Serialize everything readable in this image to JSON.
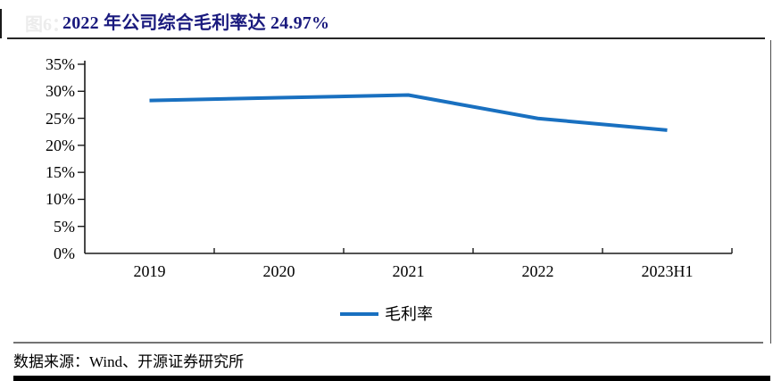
{
  "figure": {
    "faint_label": "图6：",
    "title": "2022 年公司综合毛利率达 24.97%",
    "source": "数据来源：Wind、开源证券研究所",
    "colors": {
      "title_navy": "#1a1a7e",
      "line_blue": "#1970c0",
      "axis_black": "#1a1a1a",
      "rule_gray": "#737373",
      "bottom_bar_black": "#000000"
    }
  },
  "chart_data": {
    "type": "line",
    "categories": [
      "2019",
      "2020",
      "2021",
      "2022",
      "2023H1"
    ],
    "series": [
      {
        "name": "毛利率",
        "values": [
          28.3,
          28.8,
          29.3,
          24.97,
          22.8
        ]
      }
    ],
    "title": "2022 年公司综合毛利率达 24.97%",
    "xlabel": "",
    "ylabel": "",
    "ylim": [
      0,
      35
    ],
    "ytick_step": 5,
    "ytick_labels": [
      "0%",
      "5%",
      "10%",
      "15%",
      "20%",
      "25%",
      "30%",
      "35%"
    ],
    "grid": false,
    "legend_position": "bottom-center",
    "legend": [
      "毛利率"
    ],
    "line_color": "#1970c0"
  }
}
